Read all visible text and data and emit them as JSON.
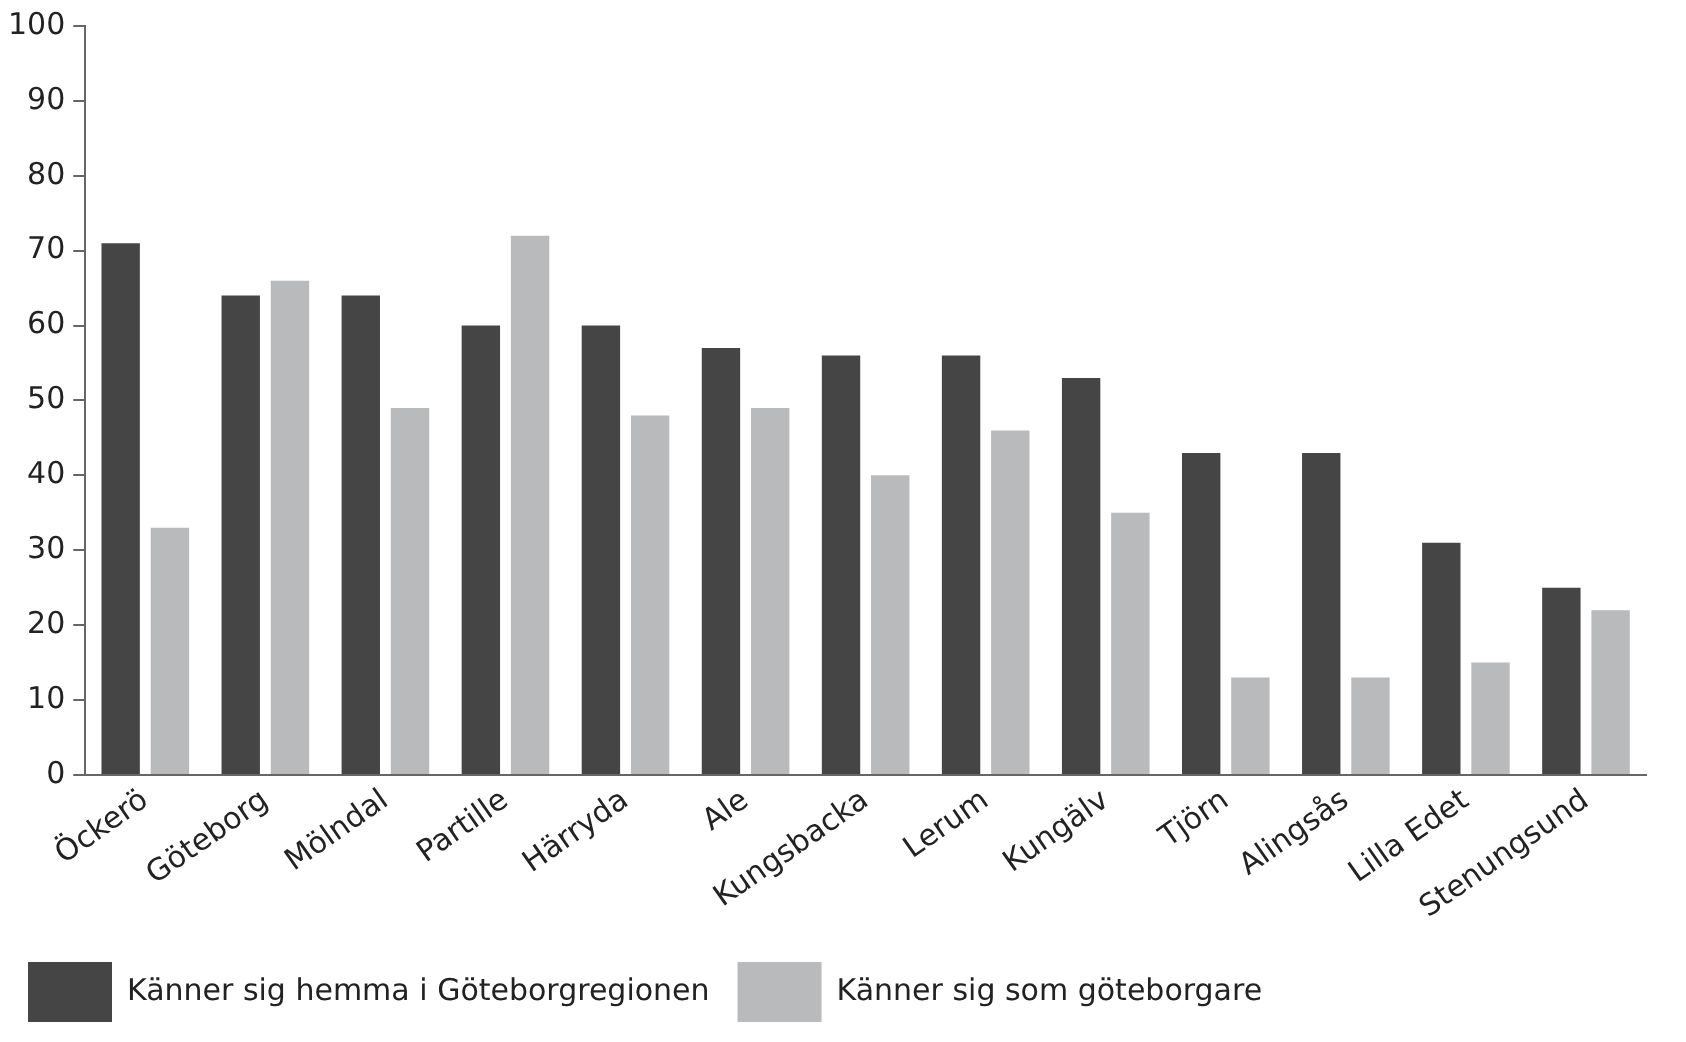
{
  "chart_data": {
    "type": "bar",
    "categories": [
      "Öckerö",
      "Göteborg",
      "Mölndal",
      "Partille",
      "Härryda",
      "Ale",
      "Kungsbacka",
      "Lerum",
      "Kungälv",
      "Tjörn",
      "Alingsås",
      "Lilla Edet",
      "Stenungsund"
    ],
    "series": [
      {
        "name": "Känner sig hemma i Göteborgregionen",
        "color": "#454545",
        "values": [
          71,
          64,
          64,
          60,
          60,
          57,
          56,
          56,
          53,
          43,
          43,
          31,
          25
        ]
      },
      {
        "name": "Känner sig som göteborgare",
        "color": "#b9babc",
        "values": [
          33,
          66,
          49,
          72,
          48,
          49,
          40,
          46,
          35,
          13,
          13,
          15,
          22
        ]
      }
    ],
    "ylim": [
      0,
      100
    ],
    "yticks": [
      0,
      10,
      20,
      30,
      40,
      50,
      60,
      70,
      80,
      90,
      100
    ],
    "grid": false,
    "legend": "bottom left"
  }
}
